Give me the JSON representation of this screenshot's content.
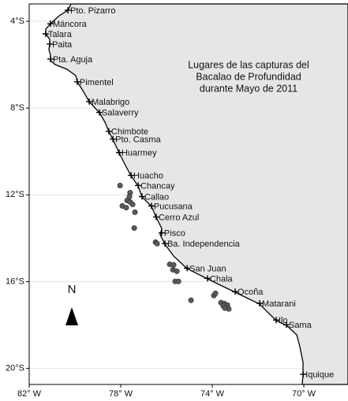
{
  "chart_data": {
    "type": "map",
    "annotation": [
      "Lugares de las capturas del",
      "Bacalao de Profundidad",
      "durante Mayo de 2011"
    ],
    "north": "N",
    "xlim": [
      -82,
      -68.07
    ],
    "ylim": [
      -20.74,
      -3.2
    ],
    "xticks": [
      {
        "value": -82,
        "label": "82° W"
      },
      {
        "value": -78,
        "label": "78° W"
      },
      {
        "value": -74,
        "label": "74° W"
      },
      {
        "value": -70,
        "label": "70° W"
      }
    ],
    "yticks": [
      {
        "value": -4,
        "label": "4°S"
      },
      {
        "value": -8,
        "label": "8°S"
      },
      {
        "value": -12,
        "label": "12°S"
      },
      {
        "value": -16,
        "label": "16°S"
      },
      {
        "value": -20,
        "label": "20°S"
      }
    ],
    "grid": true,
    "ports": [
      {
        "name": "Pto. Pizarro",
        "x": -80.31,
        "y": -3.49
      },
      {
        "name": "Máncora",
        "x": -81.07,
        "y": -4.11
      },
      {
        "name": "Talara",
        "x": -81.28,
        "y": -4.58
      },
      {
        "name": "Paita",
        "x": -81.1,
        "y": -5.05
      },
      {
        "name": "Pta. Aguja",
        "x": -81.07,
        "y": -5.74
      },
      {
        "name": "Pimentel",
        "x": -79.9,
        "y": -6.79
      },
      {
        "name": "Malabrigo",
        "x": -79.38,
        "y": -7.7
      },
      {
        "name": "Salaverry",
        "x": -78.93,
        "y": -8.2
      },
      {
        "name": "Chimbote",
        "x": -78.52,
        "y": -9.07
      },
      {
        "name": "Pto. Casma",
        "x": -78.34,
        "y": -9.43
      },
      {
        "name": "Huarmey",
        "x": -78.07,
        "y": -10.05
      },
      {
        "name": "Huacho",
        "x": -77.55,
        "y": -11.1
      },
      {
        "name": "Chancay",
        "x": -77.24,
        "y": -11.57
      },
      {
        "name": "Callao",
        "x": -77.07,
        "y": -12.08
      },
      {
        "name": "Pucusana",
        "x": -76.66,
        "y": -12.51
      },
      {
        "name": "Cerro Azul",
        "x": -76.45,
        "y": -13.02
      },
      {
        "name": "Pisco",
        "x": -76.21,
        "y": -13.75
      },
      {
        "name": "Ba. Independencia",
        "x": -76.07,
        "y": -14.25
      },
      {
        "name": "San Juan",
        "x": -75.1,
        "y": -15.38
      },
      {
        "name": "Chala",
        "x": -74.21,
        "y": -15.85
      },
      {
        "name": "Ocoña",
        "x": -73.0,
        "y": -16.46
      },
      {
        "name": "Matarani",
        "x": -71.93,
        "y": -17.0
      },
      {
        "name": "Ilo",
        "x": -71.21,
        "y": -17.77
      },
      {
        "name": "Sama",
        "x": -70.76,
        "y": -17.99
      },
      {
        "name": "Iquique",
        "x": -70.03,
        "y": -20.27
      }
    ],
    "catches": {
      "x": [
        -78.03,
        -77.59,
        -77.62,
        -77.72,
        -77.59,
        -77.93,
        -77.48,
        -77.76,
        -77.38,
        -77.41,
        -76.48,
        -76.41,
        -75.86,
        -75.69,
        -75.72,
        -75.55,
        -75.62,
        -75.48,
        -74.93,
        -73.93,
        -73.86,
        -73.62,
        -73.48,
        -73.34,
        -73.52,
        -73.28,
        -73.45
      ],
      "y": [
        -11.57,
        -11.9,
        -12.08,
        -12.26,
        -12.33,
        -12.51,
        -12.44,
        -12.59,
        -12.8,
        -13.53,
        -14.18,
        -14.25,
        -15.2,
        -15.23,
        -15.45,
        -15.52,
        -15.99,
        -15.99,
        -16.86,
        -16.64,
        -16.54,
        -16.97,
        -17.01,
        -17.08,
        -17.12,
        -17.26,
        -17.22
      ]
    }
  }
}
